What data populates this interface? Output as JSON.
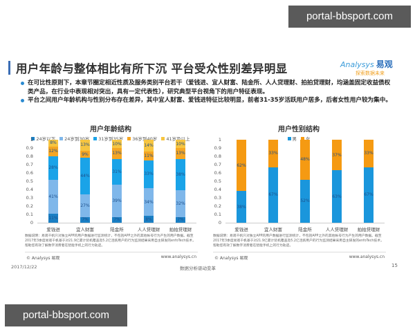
{
  "watermarks": {
    "top": "portal-bbsport.com",
    "bottom": "portal-bbsport.com"
  },
  "slide": {
    "title": "用户年龄与整体相比有所下沉   平台受众性别差异明显",
    "logo": {
      "main": "Analysys",
      "brand": "易观",
      "tagline": "探索数据未来"
    },
    "bullets": [
      "在可比性原则下，本章节圈定相近性质及服务类别平台若干（爱钱进、宜人财富、陆金所、人人贷理财、拍拍贷理财，均涵盖固定收益债权类产品，在行业中表现相对突出，具有一定代表性），研究典型平台视角下的用户特征表现。",
      "平台之间用户年龄机构与性别分布存在差异，其中宜人财富、爱钱进特征比较明显，前者31-35岁活跃用户居多，后者女性用户较为集中。"
    ],
    "panels": {
      "left": {
        "note": "数据说明：易观千帆只对独立APP的用户数据进行监测统计，不包括APP之外的其他帐号行为产生的用户数据。截至2017年3季度易观千帆基于对21.9亿累计装机覆盖及5.2亿活跃用户的行为监测结果采用自主研发的enfoTech技术，帮助您有效了解数字消费者在智能手机上的行为轨迹。",
        "copyright": "© Analysys 易观",
        "site": "www.analysys.cn"
      },
      "right": {
        "note": "数据说明：易观千帆只对独立APP的用户数据进行监测统计，不包括APP之外的其他帐号行为产生的用户数据。截至2017年3季度易观千帆基于对21.9亿累计装机覆盖及5.2亿活跃用户的行为监测结果采用自主研发的enfoTech技术，帮助您有效了解数字消费者在智能手机上的行为轨迹。",
        "copyright": "© Analysys 易观",
        "site": "www.analysys.cn"
      }
    },
    "footer": {
      "date": "2017/12/22",
      "center": "数据分析驱动变革",
      "page": "15"
    }
  },
  "colors": {
    "age_lt24": "#1a7fc4",
    "age_24_30": "#7fb7ea",
    "age_31_35": "#1aa3e8",
    "age_36_40": "#f5a623",
    "age_41plus": "#f7c540",
    "male": "#1a96dc",
    "female": "#f59a12"
  },
  "chart_data": [
    {
      "type": "bar",
      "stacked": true,
      "title": "用户年龄结构",
      "categories": [
        "爱钱进",
        "宜人财富",
        "陆金所",
        "人人贷理财",
        "拍拍贷理财"
      ],
      "series": [
        {
          "name": "24岁以下",
          "values": [
            11,
            7,
            7,
            8,
            7
          ]
        },
        {
          "name": "24岁到30岁",
          "values": [
            41,
            27,
            39,
            34,
            32
          ]
        },
        {
          "name": "31岁到35岁",
          "values": [
            28,
            44,
            31,
            33,
            38
          ]
        },
        {
          "name": "36岁到40岁",
          "values": [
            12,
            9,
            13,
            11,
            13
          ]
        },
        {
          "name": "41岁及以上",
          "values": [
            8,
            13,
            10,
            14,
            10
          ]
        }
      ],
      "yticks": [
        "0",
        "0.1",
        "0.2",
        "0.3",
        "0.4",
        "0.5",
        "0.6",
        "0.7",
        "0.8",
        "0.9",
        "1"
      ],
      "ylim": [
        0,
        1
      ],
      "legend_position": "top"
    },
    {
      "type": "bar",
      "stacked": true,
      "title": "用户性别结构",
      "categories": [
        "爱钱进",
        "宜人财富",
        "陆金所",
        "人人贷理财",
        "拍拍贷理财"
      ],
      "series": [
        {
          "name": "男",
          "values": [
            38,
            67,
            52,
            63,
            67
          ]
        },
        {
          "name": "女",
          "values": [
            62,
            33,
            48,
            37,
            33
          ]
        }
      ],
      "yticks": [
        "0",
        "0.1",
        "0.2",
        "0.3",
        "0.4",
        "0.5",
        "0.6",
        "0.7",
        "0.8",
        "0.9",
        "1"
      ],
      "ylim": [
        0,
        1
      ],
      "legend_position": "top"
    }
  ]
}
